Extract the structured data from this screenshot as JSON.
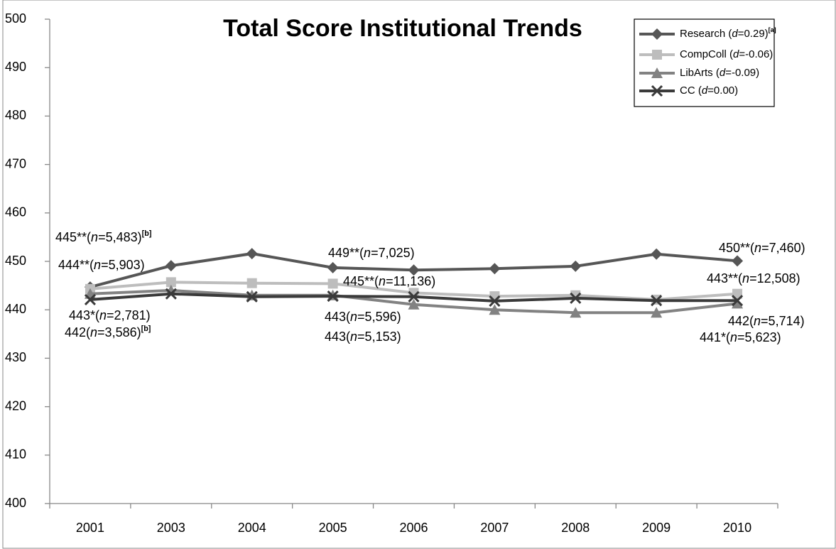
{
  "chart_data": {
    "type": "line",
    "title": "Total Score Institutional Trends",
    "categories": [
      "2001",
      "2003",
      "2004",
      "2005",
      "2006",
      "2007",
      "2008",
      "2009",
      "2010"
    ],
    "series": [
      {
        "name": "Research (d=0.29)[a]",
        "color": "#565656",
        "marker": "diamond",
        "values": [
          444.7,
          449.1,
          451.6,
          448.7,
          448.2,
          448.5,
          449.0,
          451.5,
          450.1
        ]
      },
      {
        "name": "CompColl (d=-0.06)",
        "color": "#bdbdbd",
        "marker": "square",
        "values": [
          444.3,
          445.7,
          445.5,
          445.4,
          443.5,
          442.8,
          443.0,
          442.1,
          443.3
        ]
      },
      {
        "name": "LibArts (d=-0.09)",
        "color": "#828282",
        "marker": "triangle",
        "values": [
          443.3,
          444.0,
          443.0,
          443.0,
          441.1,
          440.0,
          439.4,
          439.4,
          441.3
        ]
      },
      {
        "name": "CC (d=0.00)",
        "color": "#3a3a3a",
        "marker": "x",
        "values": [
          442.1,
          443.3,
          442.7,
          442.8,
          442.7,
          441.8,
          442.4,
          441.9,
          441.9
        ]
      }
    ],
    "annotations": [
      "445**(n=5,483)[b]",
      "444**(n=5,903)",
      "443*(n=2,781)",
      "442(n=3,586)[b]",
      "449**(n=7,025)",
      "445**(n=11,136)",
      "443(n=5,596)",
      "443(n=5,153)",
      "450**(n=7,460)",
      "443**(n=12,508)",
      "442(n=5,714)",
      "441*(n=5,623)"
    ],
    "ylim": [
      400,
      500
    ],
    "yticks": [
      400,
      410,
      420,
      430,
      440,
      450,
      460,
      470,
      480,
      490,
      500
    ],
    "grid": false,
    "legend": "top-right"
  }
}
